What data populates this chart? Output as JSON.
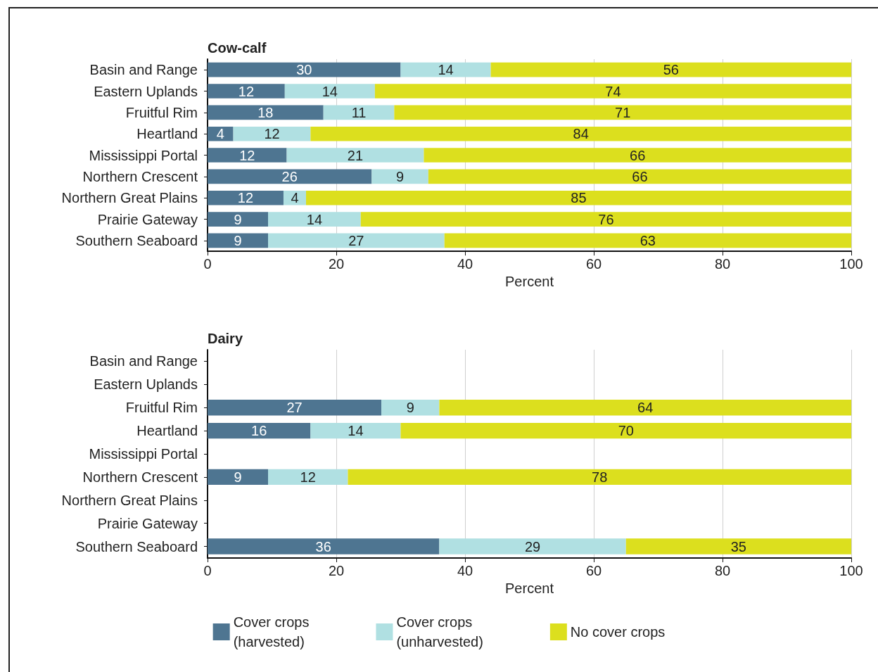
{
  "chart_data": [
    {
      "type": "bar",
      "orientation": "horizontal",
      "stacked": true,
      "title": "Cow-calf",
      "xlabel": "Percent",
      "categories": [
        "Basin and Range",
        "Eastern Uplands",
        "Fruitful Rim",
        "Heartland",
        "Mississippi Portal",
        "Northern Crescent",
        "Northern Great Plains",
        "Prairie Gateway",
        "Southern Seaboard"
      ],
      "series": [
        {
          "color": "#4e7591",
          "values": [
            30,
            12,
            18,
            4,
            12.3,
            25.5,
            11.8,
            9.4,
            9.4
          ],
          "value_labels": [
            "30",
            "12",
            "18",
            "4",
            "12",
            "26",
            "12",
            "9",
            "9"
          ]
        },
        {
          "color": "#b0e0e2",
          "values": [
            14,
            14,
            11,
            12,
            21.3,
            8.8,
            3.5,
            14.4,
            27.4
          ],
          "value_labels": [
            "14",
            "14",
            "11",
            "12",
            "21",
            "9",
            "4",
            "14",
            "27"
          ]
        },
        {
          "color": "#dcdf1e",
          "values": [
            56,
            74,
            71,
            84,
            66.4,
            65.7,
            84.7,
            76.2,
            63.2
          ],
          "value_labels": [
            "56",
            "74",
            "71",
            "84",
            "66",
            "66",
            "85",
            "76",
            "63"
          ]
        }
      ],
      "xlim": [
        0,
        100
      ],
      "xticks": [
        0,
        20,
        40,
        60,
        80,
        100
      ],
      "grid": "x",
      "legend": false
    },
    {
      "type": "bar",
      "orientation": "horizontal",
      "stacked": true,
      "title": "Dairy",
      "xlabel": "Percent",
      "categories": [
        "Basin and Range",
        "Eastern Uplands",
        "Fruitful Rim",
        "Heartland",
        "Mississippi Portal",
        "Northern Crescent",
        "Northern Great Plains",
        "Prairie Gateway",
        "Southern Seaboard"
      ],
      "series": [
        {
          "name": "Cover crops\n(harvested)",
          "color": "#4e7591",
          "values": [
            null,
            null,
            27,
            16,
            null,
            9.4,
            null,
            null,
            36
          ],
          "value_labels": [
            null,
            null,
            "27",
            "16",
            null,
            "9",
            null,
            null,
            "36"
          ]
        },
        {
          "name": "Cover crops\n(unharvested)",
          "color": "#b0e0e2",
          "values": [
            null,
            null,
            9,
            14,
            null,
            12.4,
            null,
            null,
            29
          ],
          "value_labels": [
            null,
            null,
            "9",
            "14",
            null,
            "12",
            null,
            null,
            "29"
          ]
        },
        {
          "name": "No cover crops",
          "color": "#dcdf1e",
          "values": [
            null,
            null,
            64,
            70,
            null,
            78.2,
            null,
            null,
            35
          ],
          "value_labels": [
            null,
            null,
            "64",
            "70",
            null,
            "78",
            null,
            null,
            "35"
          ]
        }
      ],
      "xlim": [
        0,
        100
      ],
      "xticks": [
        0,
        20,
        40,
        60,
        80,
        100
      ],
      "grid": "x",
      "legend": "bottom"
    }
  ]
}
